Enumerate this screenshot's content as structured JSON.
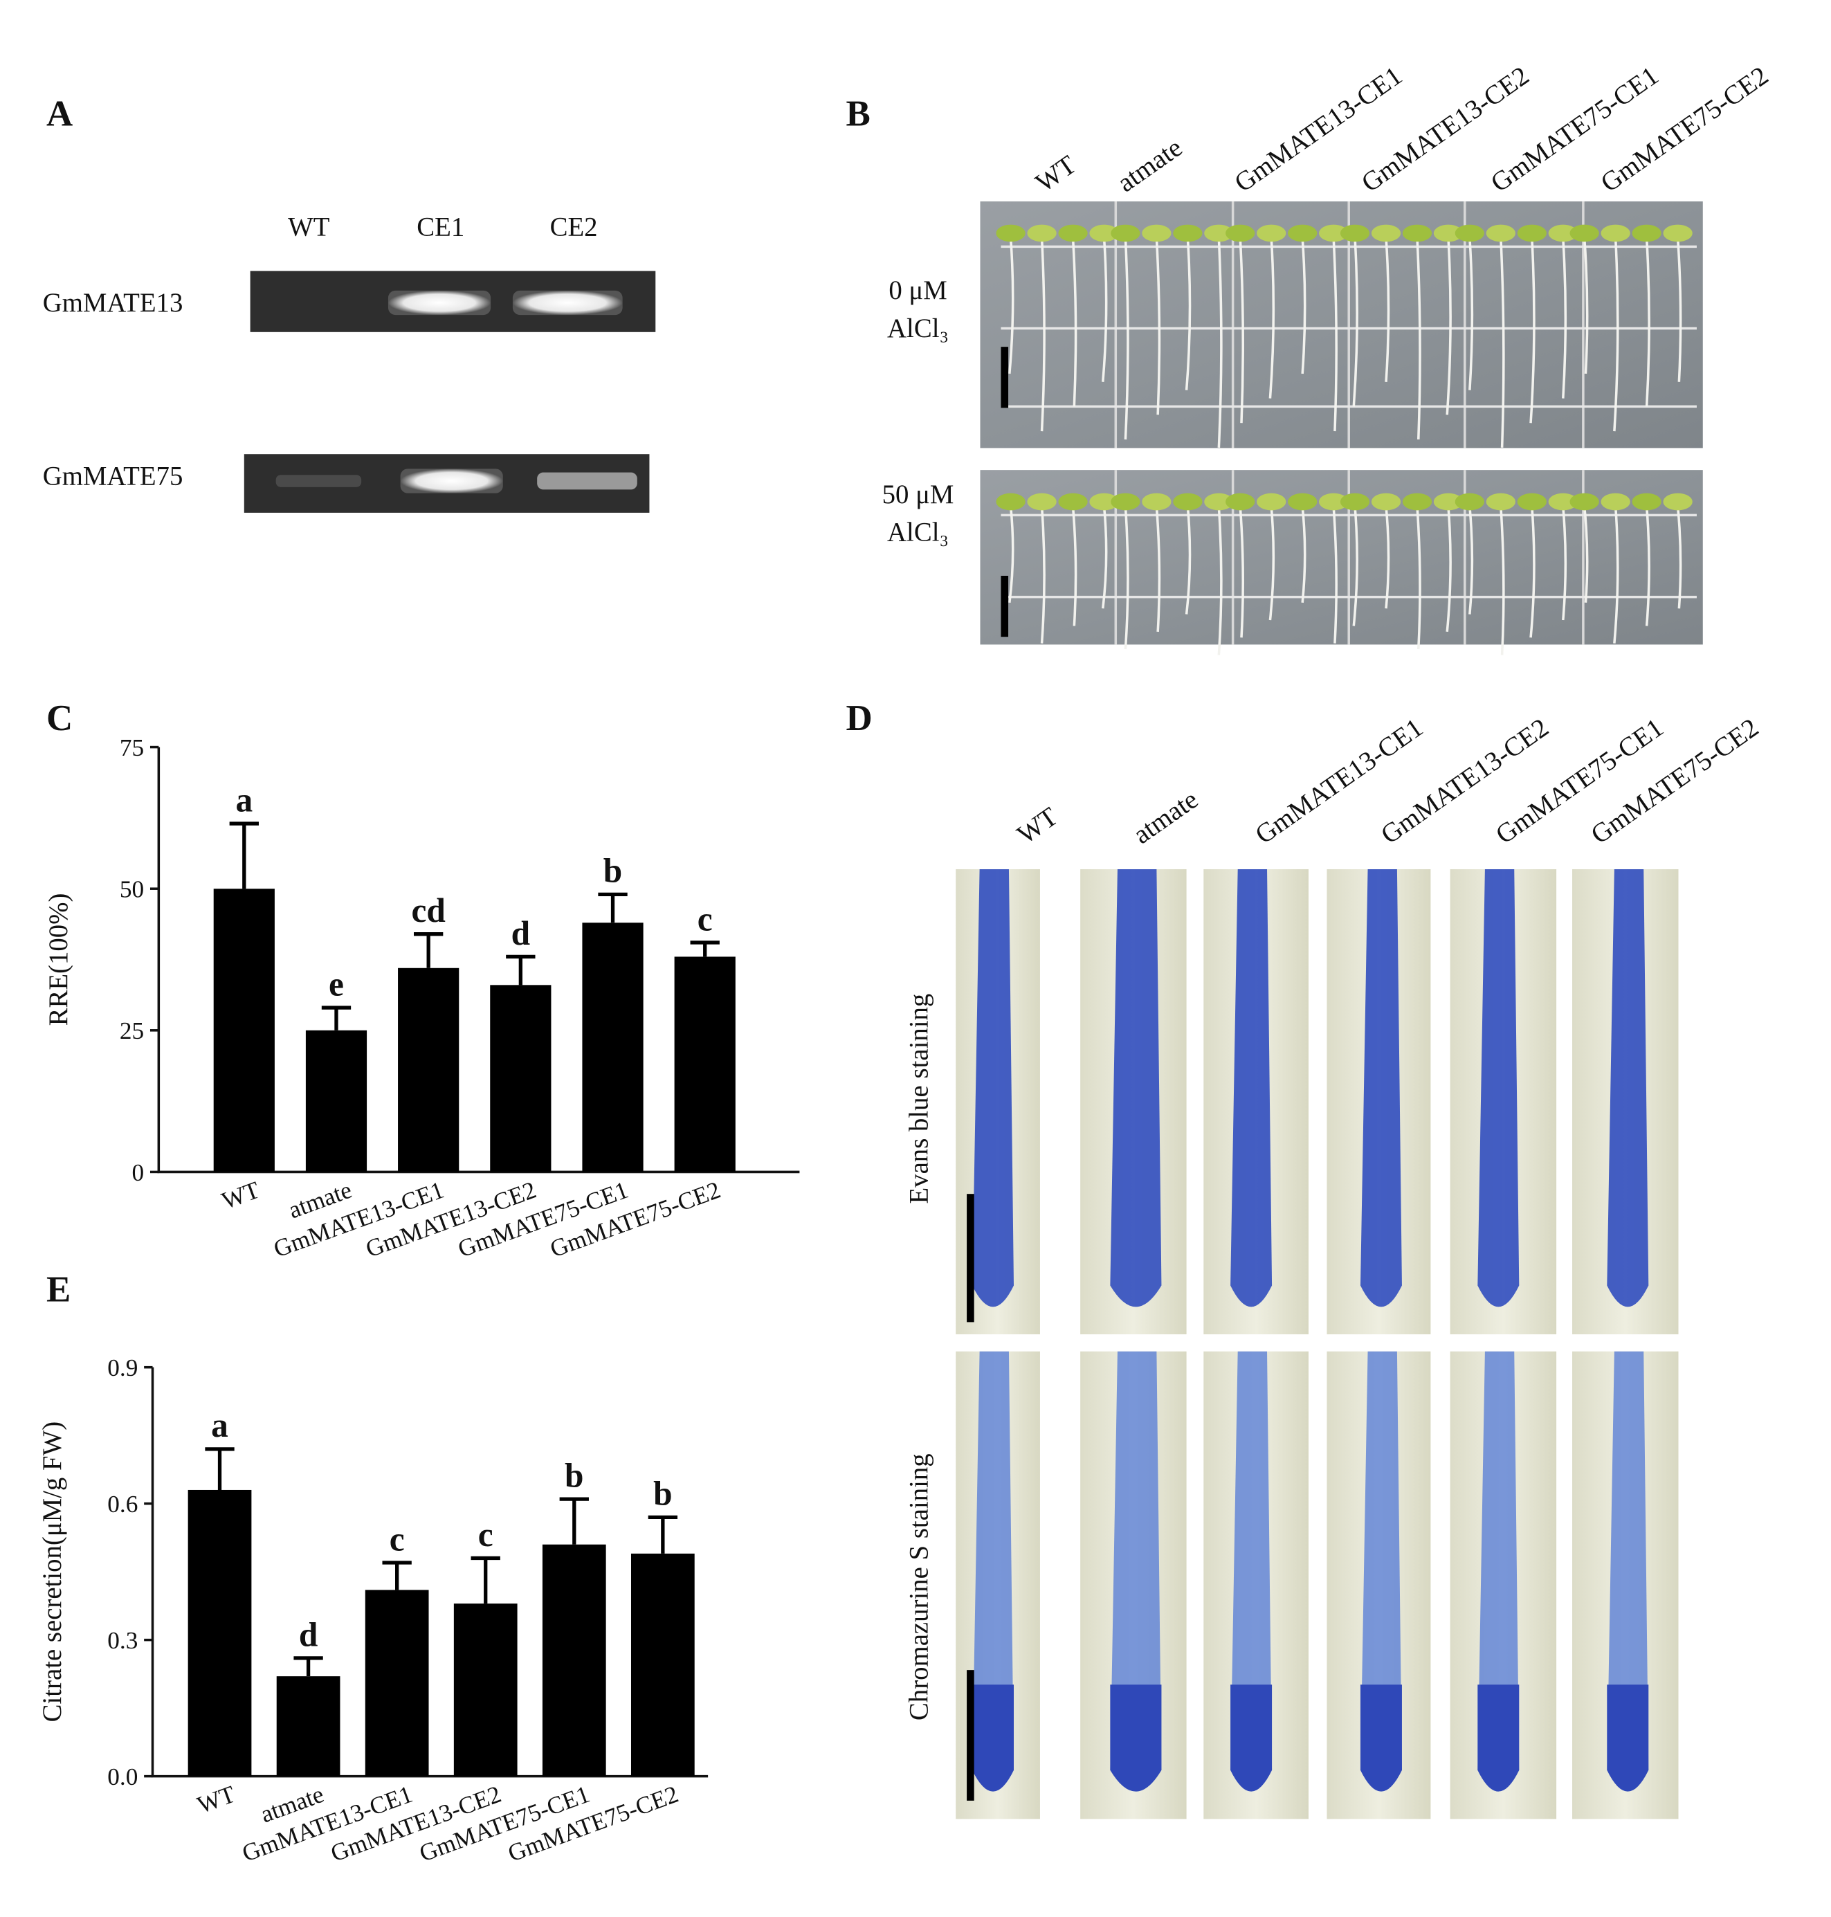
{
  "panel_a": {
    "label": "A",
    "lanes": [
      "WT",
      "CE1",
      "CE2"
    ],
    "genes": [
      "GmMATE13",
      "GmMATE75"
    ]
  },
  "panel_b": {
    "label": "B",
    "columns": [
      "WT",
      "atmate",
      "GmMATE13-CE1",
      "GmMATE13-CE2",
      "GmMATE75-CE1",
      "GmMATE75-CE2"
    ],
    "rows": [
      [
        "0 μM",
        "AlCl₃"
      ],
      [
        "50 μM",
        "AlCl₃"
      ]
    ]
  },
  "panel_d": {
    "label": "D",
    "columns": [
      "WT",
      "atmate",
      "GmMATE13-CE1",
      "GmMATE13-CE2",
      "GmMATE75-CE1",
      "GmMATE75-CE2"
    ],
    "rows": [
      "Evans blue staining",
      "Chromazurine S staining"
    ]
  },
  "chart_data": [
    {
      "type": "bar",
      "label": "C",
      "ylabel": "RRE(100%)",
      "categories": [
        "WT",
        "atmate",
        "GmMATE13-CE1",
        "GmMATE13-CE2",
        "GmMATE75-CE1",
        "GmMATE75-CE2"
      ],
      "values": [
        50,
        25,
        36,
        33,
        44,
        38
      ],
      "errors": [
        11.5,
        4,
        6,
        5,
        5,
        2.5
      ],
      "letters": [
        "a",
        "e",
        "cd",
        "d",
        "b",
        "c"
      ],
      "color": "#000000",
      "ylim": [
        0,
        75
      ],
      "yticks": [
        0,
        25,
        50,
        75
      ]
    },
    {
      "type": "bar",
      "label": "E",
      "ylabel": "Citrate secretion(μM/g FW)",
      "categories": [
        "WT",
        "atmate",
        "GmMATE13-CE1",
        "GmMATE13-CE2",
        "GmMATE75-CE1",
        "GmMATE75-CE2"
      ],
      "values": [
        0.63,
        0.22,
        0.41,
        0.38,
        0.51,
        0.49
      ],
      "errors": [
        0.09,
        0.04,
        0.06,
        0.1,
        0.1,
        0.08
      ],
      "letters": [
        "a",
        "d",
        "c",
        "c",
        "b",
        "b"
      ],
      "color": "#000000",
      "ylim": [
        0,
        0.9
      ],
      "yticks": [
        {
          "value": 0,
          "label": "0.0"
        },
        0.3,
        0.6,
        0.9
      ]
    }
  ]
}
